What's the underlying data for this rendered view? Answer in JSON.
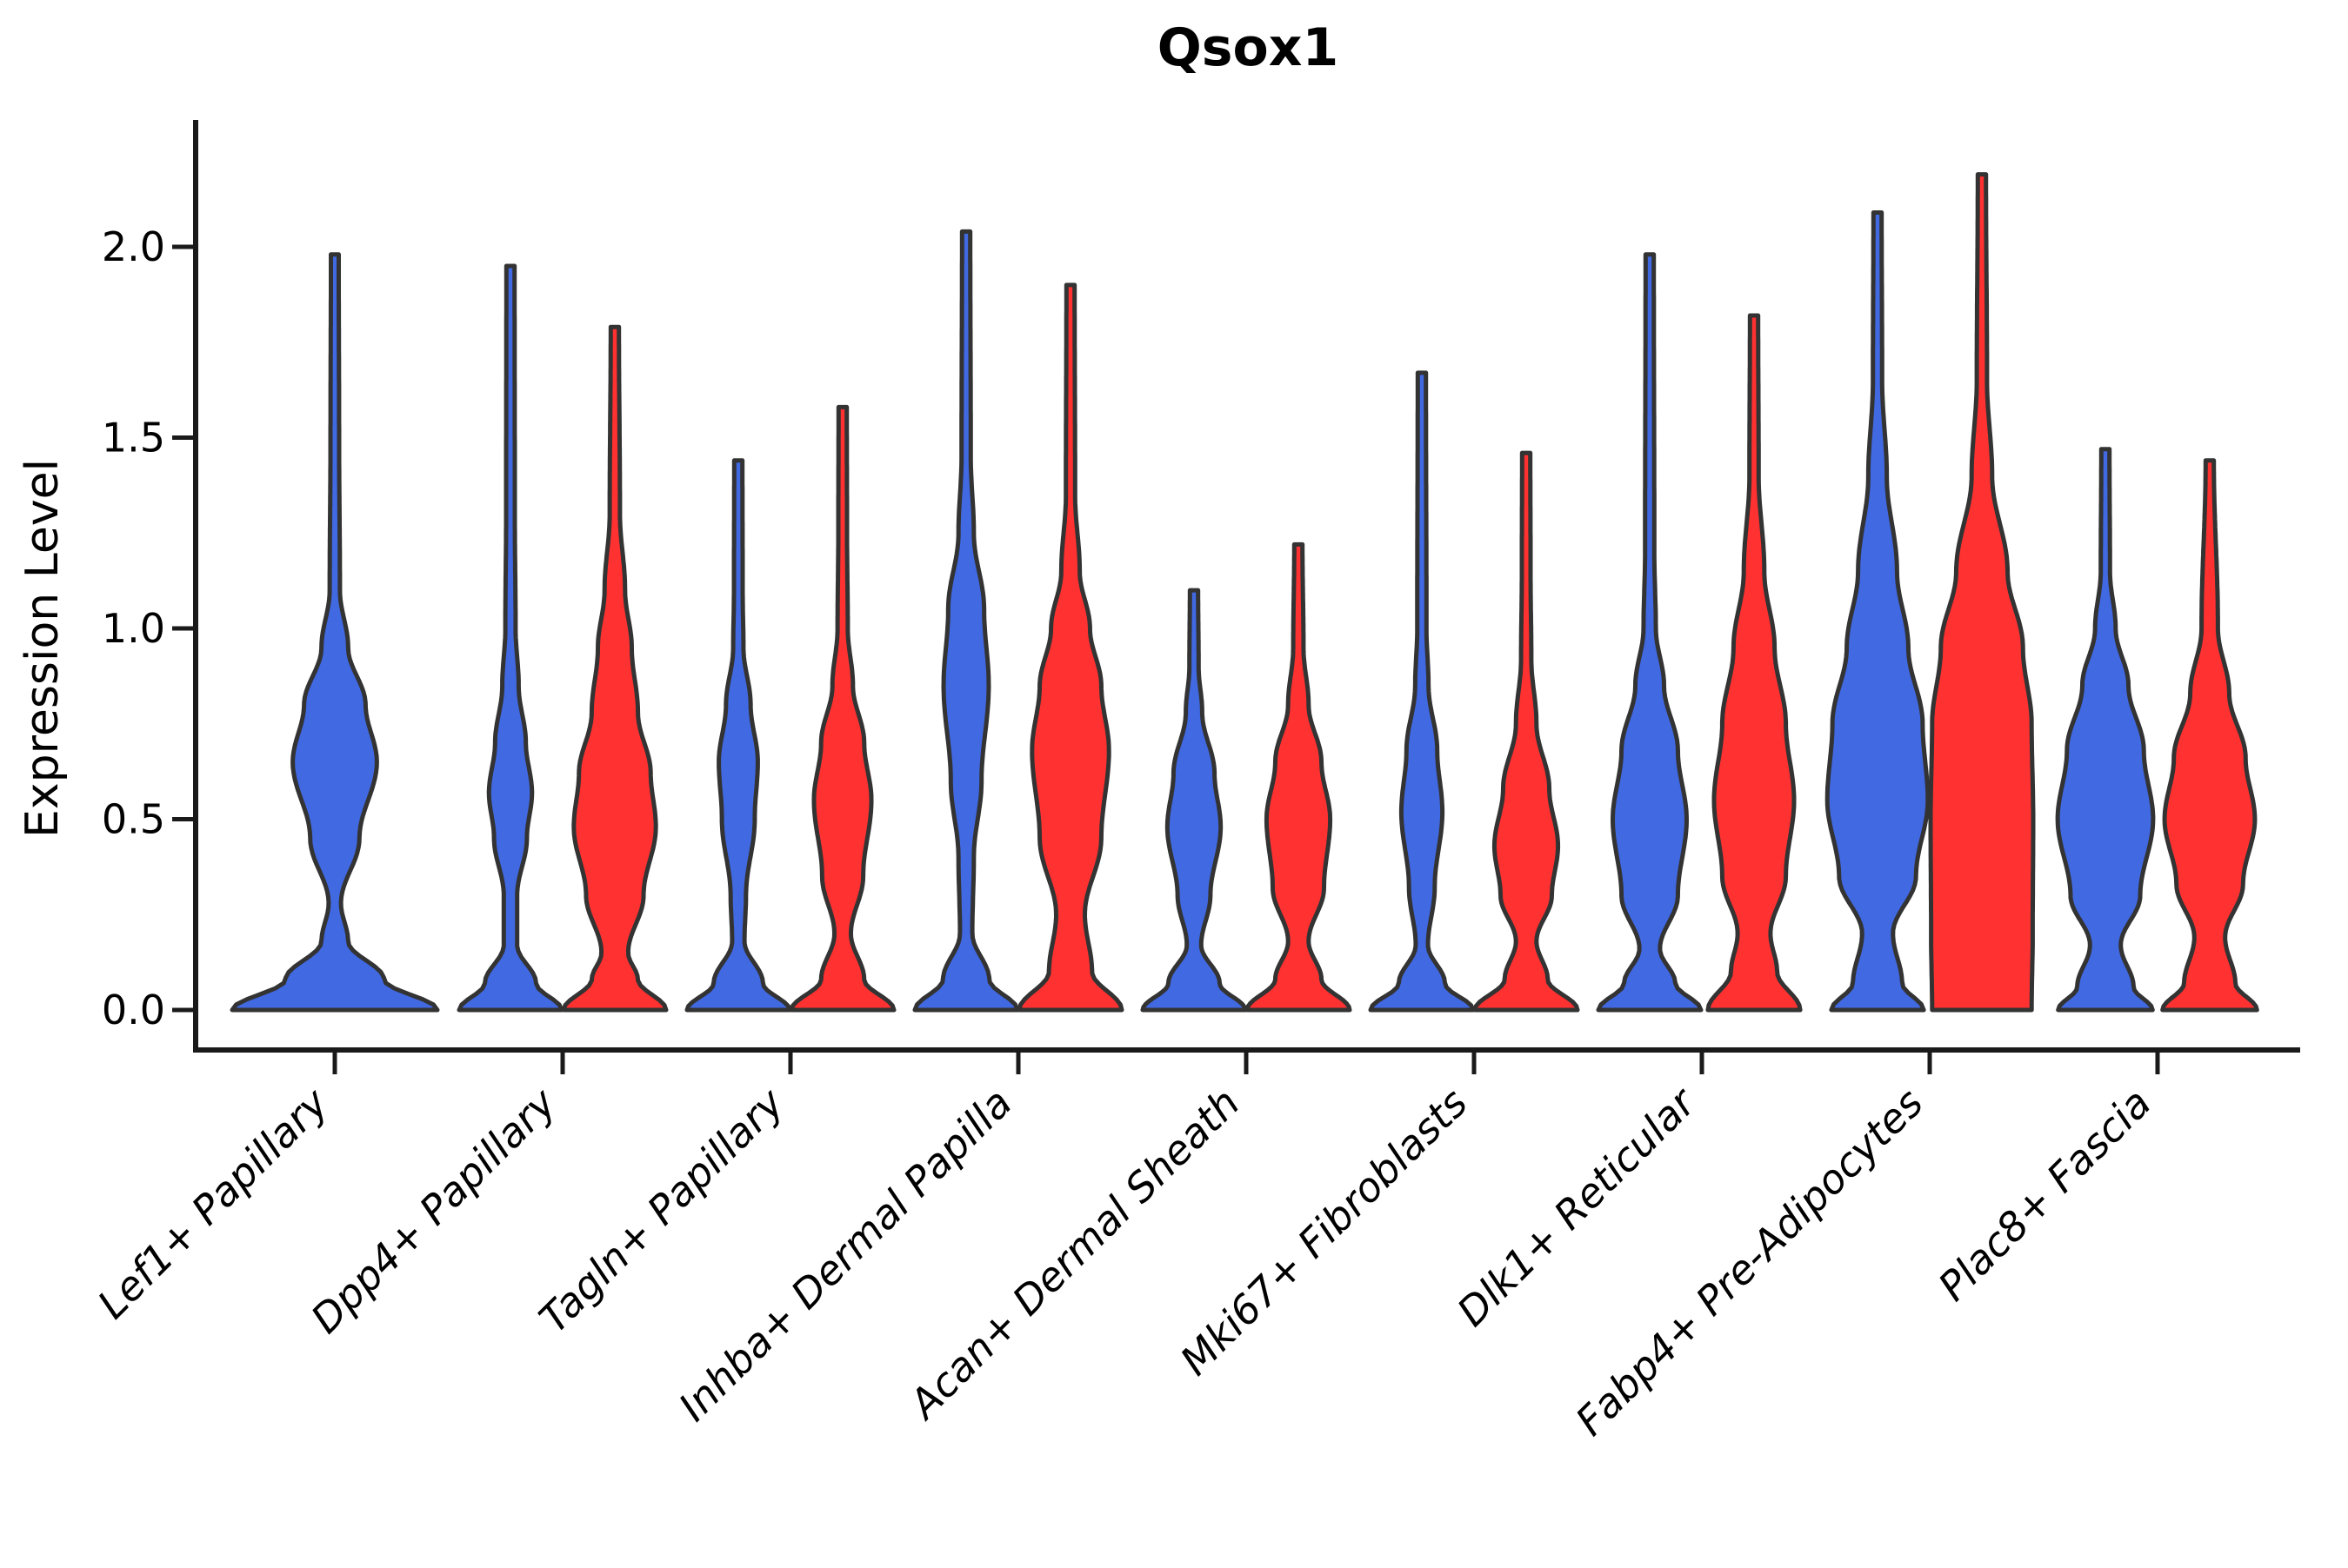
{
  "chart_data": {
    "type": "violin",
    "title": "Qsox1",
    "ylabel": "Expression Level",
    "xlabel": "",
    "ylim": [
      0,
      2.2
    ],
    "yticks": [
      0.0,
      0.5,
      1.0,
      1.5,
      2.0
    ],
    "ytick_labels": [
      "0.0",
      "0.5",
      "1.0",
      "1.5",
      "2.0"
    ],
    "grid": false,
    "legend_position": "none",
    "categories": [
      "Lef1+ Papillary",
      "Dpp4+ Papillary",
      "Tagln+ Papillary",
      "Inhba+ Dermal Papilla",
      "Acan+ Dermal Sheath",
      "Mki67+ Fibroblasts",
      "Dlk1+ Reticular",
      "Fabp4+ Pre-Adipocytes",
      "Plac8+ Fascia"
    ],
    "hue_colors": {
      "blue": "#4169E1",
      "red": "#FF3131"
    },
    "outline_color": "#333333",
    "axis_color": "#1a1a1a",
    "violins": [
      {
        "category_index": 0,
        "hue": "blue",
        "layout": "single",
        "max_expression": 1.98,
        "profile": [
          [
            0,
            1.0
          ],
          [
            0.08,
            0.48
          ],
          [
            0.18,
            0.13
          ],
          [
            0.28,
            0.06
          ],
          [
            0.45,
            0.24
          ],
          [
            0.65,
            0.41
          ],
          [
            0.8,
            0.3
          ],
          [
            0.95,
            0.13
          ],
          [
            1.1,
            0.05
          ],
          [
            1.5,
            0.042
          ],
          [
            1.98,
            0.038
          ]
        ]
      },
      {
        "category_index": 1,
        "hue": "blue",
        "layout": "left",
        "max_expression": 1.95,
        "profile": [
          [
            0,
            1.0
          ],
          [
            0.07,
            0.5
          ],
          [
            0.17,
            0.13
          ],
          [
            0.3,
            0.13
          ],
          [
            0.45,
            0.32
          ],
          [
            0.57,
            0.42
          ],
          [
            0.7,
            0.3
          ],
          [
            0.85,
            0.16
          ],
          [
            1.0,
            0.1
          ],
          [
            1.3,
            0.085
          ],
          [
            1.95,
            0.08
          ]
        ]
      },
      {
        "category_index": 1,
        "hue": "red",
        "layout": "right",
        "max_expression": 1.79,
        "profile": [
          [
            0,
            1.0
          ],
          [
            0.08,
            0.45
          ],
          [
            0.15,
            0.26
          ],
          [
            0.3,
            0.56
          ],
          [
            0.48,
            0.8
          ],
          [
            0.62,
            0.7
          ],
          [
            0.78,
            0.45
          ],
          [
            0.95,
            0.33
          ],
          [
            1.1,
            0.2
          ],
          [
            1.3,
            0.1
          ],
          [
            1.79,
            0.08
          ]
        ]
      },
      {
        "category_index": 2,
        "hue": "blue",
        "layout": "left",
        "max_expression": 1.44,
        "profile": [
          [
            0,
            1.0
          ],
          [
            0.07,
            0.48
          ],
          [
            0.18,
            0.12
          ],
          [
            0.3,
            0.15
          ],
          [
            0.5,
            0.32
          ],
          [
            0.65,
            0.38
          ],
          [
            0.8,
            0.24
          ],
          [
            0.95,
            0.1
          ],
          [
            1.1,
            0.085
          ],
          [
            1.44,
            0.08
          ]
        ]
      },
      {
        "category_index": 2,
        "hue": "red",
        "layout": "right",
        "max_expression": 1.58,
        "profile": [
          [
            0,
            1.0
          ],
          [
            0.08,
            0.42
          ],
          [
            0.2,
            0.16
          ],
          [
            0.35,
            0.4
          ],
          [
            0.55,
            0.56
          ],
          [
            0.7,
            0.42
          ],
          [
            0.85,
            0.2
          ],
          [
            1.0,
            0.1
          ],
          [
            1.25,
            0.085
          ],
          [
            1.58,
            0.08
          ]
        ]
      },
      {
        "category_index": 3,
        "hue": "blue",
        "layout": "left",
        "max_expression": 2.04,
        "profile": [
          [
            0,
            1.0
          ],
          [
            0.08,
            0.45
          ],
          [
            0.2,
            0.12
          ],
          [
            0.4,
            0.15
          ],
          [
            0.6,
            0.3
          ],
          [
            0.85,
            0.44
          ],
          [
            1.05,
            0.35
          ],
          [
            1.25,
            0.15
          ],
          [
            1.45,
            0.09
          ],
          [
            2.04,
            0.08
          ]
        ]
      },
      {
        "category_index": 3,
        "hue": "red",
        "layout": "right",
        "max_expression": 1.9,
        "profile": [
          [
            0,
            1.0
          ],
          [
            0.1,
            0.42
          ],
          [
            0.25,
            0.28
          ],
          [
            0.45,
            0.6
          ],
          [
            0.68,
            0.75
          ],
          [
            0.85,
            0.6
          ],
          [
            1.0,
            0.38
          ],
          [
            1.15,
            0.18
          ],
          [
            1.35,
            0.09
          ],
          [
            1.9,
            0.08
          ]
        ]
      },
      {
        "category_index": 4,
        "hue": "blue",
        "layout": "left",
        "max_expression": 1.1,
        "profile": [
          [
            0,
            1.0
          ],
          [
            0.07,
            0.5
          ],
          [
            0.17,
            0.14
          ],
          [
            0.3,
            0.32
          ],
          [
            0.48,
            0.52
          ],
          [
            0.62,
            0.4
          ],
          [
            0.78,
            0.16
          ],
          [
            0.9,
            0.09
          ],
          [
            1.1,
            0.08
          ]
        ]
      },
      {
        "category_index": 4,
        "hue": "red",
        "layout": "right",
        "max_expression": 1.22,
        "profile": [
          [
            0,
            1.0
          ],
          [
            0.08,
            0.45
          ],
          [
            0.18,
            0.2
          ],
          [
            0.32,
            0.5
          ],
          [
            0.5,
            0.62
          ],
          [
            0.65,
            0.45
          ],
          [
            0.8,
            0.2
          ],
          [
            0.95,
            0.1
          ],
          [
            1.22,
            0.08
          ]
        ]
      },
      {
        "category_index": 5,
        "hue": "blue",
        "layout": "left",
        "max_expression": 1.67,
        "profile": [
          [
            0,
            1.0
          ],
          [
            0.07,
            0.45
          ],
          [
            0.17,
            0.12
          ],
          [
            0.32,
            0.25
          ],
          [
            0.52,
            0.4
          ],
          [
            0.68,
            0.3
          ],
          [
            0.85,
            0.13
          ],
          [
            1.0,
            0.09
          ],
          [
            1.67,
            0.08
          ]
        ]
      },
      {
        "category_index": 5,
        "hue": "red",
        "layout": "right",
        "max_expression": 1.46,
        "profile": [
          [
            0,
            1.0
          ],
          [
            0.08,
            0.42
          ],
          [
            0.18,
            0.2
          ],
          [
            0.3,
            0.5
          ],
          [
            0.43,
            0.62
          ],
          [
            0.58,
            0.45
          ],
          [
            0.75,
            0.2
          ],
          [
            0.92,
            0.1
          ],
          [
            1.15,
            0.085
          ],
          [
            1.46,
            0.08
          ]
        ]
      },
      {
        "category_index": 6,
        "hue": "blue",
        "layout": "left",
        "max_expression": 1.98,
        "profile": [
          [
            0,
            1.0
          ],
          [
            0.07,
            0.5
          ],
          [
            0.16,
            0.2
          ],
          [
            0.3,
            0.55
          ],
          [
            0.5,
            0.72
          ],
          [
            0.68,
            0.55
          ],
          [
            0.85,
            0.28
          ],
          [
            1.0,
            0.12
          ],
          [
            1.2,
            0.09
          ],
          [
            1.98,
            0.08
          ]
        ]
      },
      {
        "category_index": 6,
        "hue": "red",
        "layout": "right",
        "max_expression": 1.82,
        "profile": [
          [
            0,
            0.9
          ],
          [
            0.1,
            0.45
          ],
          [
            0.2,
            0.32
          ],
          [
            0.35,
            0.62
          ],
          [
            0.55,
            0.78
          ],
          [
            0.75,
            0.62
          ],
          [
            0.95,
            0.4
          ],
          [
            1.15,
            0.2
          ],
          [
            1.4,
            0.09
          ],
          [
            1.82,
            0.08
          ]
        ]
      },
      {
        "category_index": 7,
        "hue": "blue",
        "layout": "left",
        "max_expression": 2.09,
        "profile": [
          [
            0,
            0.9
          ],
          [
            0.07,
            0.48
          ],
          [
            0.2,
            0.3
          ],
          [
            0.35,
            0.75
          ],
          [
            0.55,
            0.98
          ],
          [
            0.75,
            0.88
          ],
          [
            0.95,
            0.6
          ],
          [
            1.15,
            0.38
          ],
          [
            1.4,
            0.18
          ],
          [
            1.65,
            0.09
          ],
          [
            2.09,
            0.08
          ]
        ]
      },
      {
        "category_index": 7,
        "hue": "red",
        "layout": "right",
        "max_expression": 2.19,
        "profile": [
          [
            0,
            0.97
          ],
          [
            0.2,
            0.99
          ],
          [
            0.5,
            1.0
          ],
          [
            0.75,
            0.97
          ],
          [
            0.95,
            0.8
          ],
          [
            1.15,
            0.5
          ],
          [
            1.4,
            0.2
          ],
          [
            1.65,
            0.1
          ],
          [
            2.19,
            0.08
          ]
        ]
      },
      {
        "category_index": 8,
        "hue": "blue",
        "layout": "left",
        "max_expression": 1.47,
        "profile": [
          [
            0,
            0.92
          ],
          [
            0.06,
            0.55
          ],
          [
            0.17,
            0.3
          ],
          [
            0.3,
            0.68
          ],
          [
            0.5,
            0.93
          ],
          [
            0.68,
            0.75
          ],
          [
            0.85,
            0.45
          ],
          [
            1.0,
            0.2
          ],
          [
            1.15,
            0.09
          ],
          [
            1.47,
            0.08
          ]
        ]
      },
      {
        "category_index": 8,
        "hue": "red",
        "layout": "right",
        "max_expression": 1.44,
        "profile": [
          [
            0,
            0.92
          ],
          [
            0.07,
            0.5
          ],
          [
            0.19,
            0.3
          ],
          [
            0.33,
            0.65
          ],
          [
            0.5,
            0.88
          ],
          [
            0.66,
            0.7
          ],
          [
            0.83,
            0.38
          ],
          [
            1.0,
            0.16
          ],
          [
            1.44,
            0.08
          ]
        ]
      }
    ]
  }
}
